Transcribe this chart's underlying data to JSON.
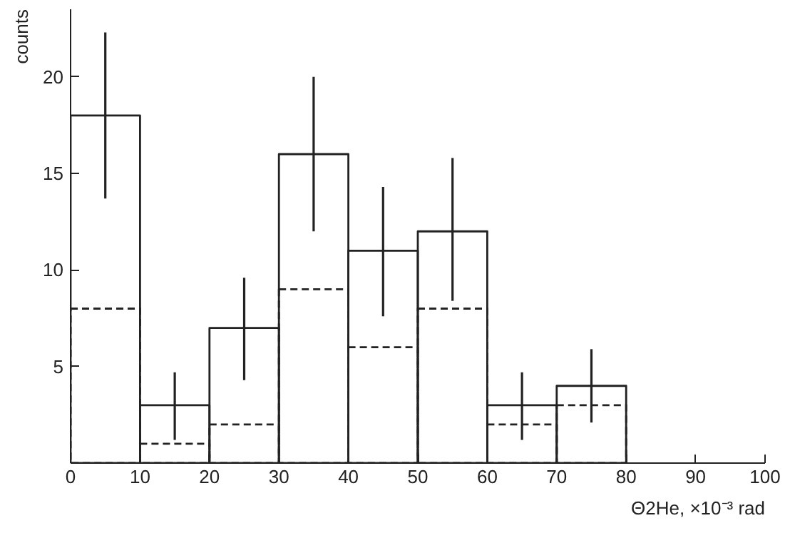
{
  "chart_data": {
    "type": "histogram",
    "xlabel": "Θ2He, ×10⁻³ rad",
    "ylabel": "counts",
    "bins": [
      0,
      10,
      20,
      30,
      40,
      50,
      60,
      70,
      80
    ],
    "series": [
      {
        "color": "#222222",
        "line_style": "solid",
        "values": [
          18,
          3,
          7,
          16,
          11,
          12,
          3,
          4
        ],
        "errors": [
          [
            13.7,
            22.3
          ],
          [
            1.2,
            4.7
          ],
          [
            4.3,
            9.6
          ],
          [
            12,
            20
          ],
          [
            7.6,
            14.3
          ],
          [
            8.4,
            15.8
          ],
          [
            1.2,
            4.7
          ],
          [
            2.1,
            5.9
          ]
        ]
      },
      {
        "color": "#222222",
        "line_style": "dashed",
        "values": [
          8,
          1,
          2,
          9,
          6,
          8,
          2,
          3
        ]
      }
    ],
    "xlim": [
      0,
      100
    ],
    "xticks": [
      0,
      10,
      20,
      30,
      40,
      50,
      60,
      70,
      80,
      90,
      100
    ],
    "ylim": [
      0,
      23.5
    ],
    "yticks": [
      5,
      10,
      15,
      20
    ],
    "grid": false
  }
}
